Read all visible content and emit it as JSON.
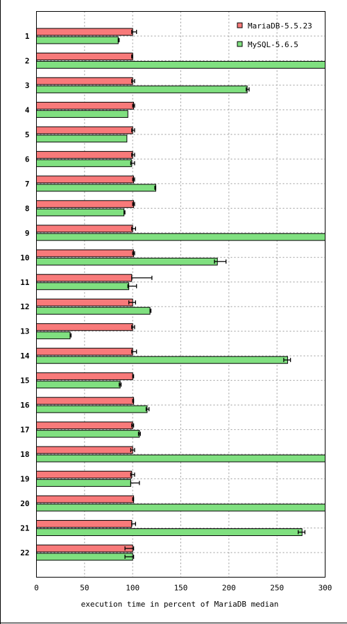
{
  "chart_data": {
    "type": "bar",
    "orientation": "horizontal",
    "categories": [
      "1",
      "2",
      "3",
      "4",
      "5",
      "6",
      "7",
      "8",
      "9",
      "10",
      "11",
      "12",
      "13",
      "14",
      "15",
      "16",
      "17",
      "18",
      "19",
      "20",
      "21",
      "22"
    ],
    "series": [
      {
        "name": "MariaDB-5.5.23",
        "color": "#f87a7a",
        "values": [
          100,
          100,
          100,
          101,
          100,
          100,
          101,
          101,
          100,
          101,
          99,
          100,
          100,
          100,
          100,
          101,
          100,
          100,
          99,
          101,
          99,
          100
        ],
        "err_low": [
          99,
          99,
          99,
          100,
          99,
          99,
          100,
          100,
          99,
          100,
          99,
          96,
          99,
          99,
          100,
          100,
          99,
          98,
          98,
          100,
          99,
          92
        ],
        "err_high": [
          104,
          100,
          102,
          102,
          102,
          102,
          102,
          102,
          103,
          102,
          120,
          103,
          102,
          104,
          101,
          101,
          101,
          102,
          102,
          101,
          103,
          101
        ]
      },
      {
        "name": "MySQL-5.6.5",
        "color": "#80e080",
        "values": [
          85,
          300,
          219,
          95,
          94,
          99,
          124,
          91,
          300,
          188,
          96,
          118,
          35,
          261,
          87,
          115,
          107,
          300,
          98,
          300,
          276,
          100
        ],
        "err_low": [
          85,
          300,
          218,
          95,
          94,
          98,
          123,
          91,
          300,
          185,
          95,
          118,
          35,
          257,
          86,
          114,
          106,
          300,
          98,
          300,
          272,
          92
        ],
        "err_high": [
          86,
          300,
          221,
          95,
          94,
          102,
          124,
          92,
          300,
          197,
          104,
          119,
          36,
          264,
          88,
          117,
          108,
          300,
          107,
          300,
          279,
          101
        ]
      }
    ],
    "x_ticks": [
      "0",
      "50",
      "100",
      "150",
      "200",
      "250",
      "300"
    ],
    "xlim": [
      0,
      300
    ],
    "xlabel": "execution time in percent of MariaDB median",
    "grid": true,
    "legend_position": "top-right"
  }
}
